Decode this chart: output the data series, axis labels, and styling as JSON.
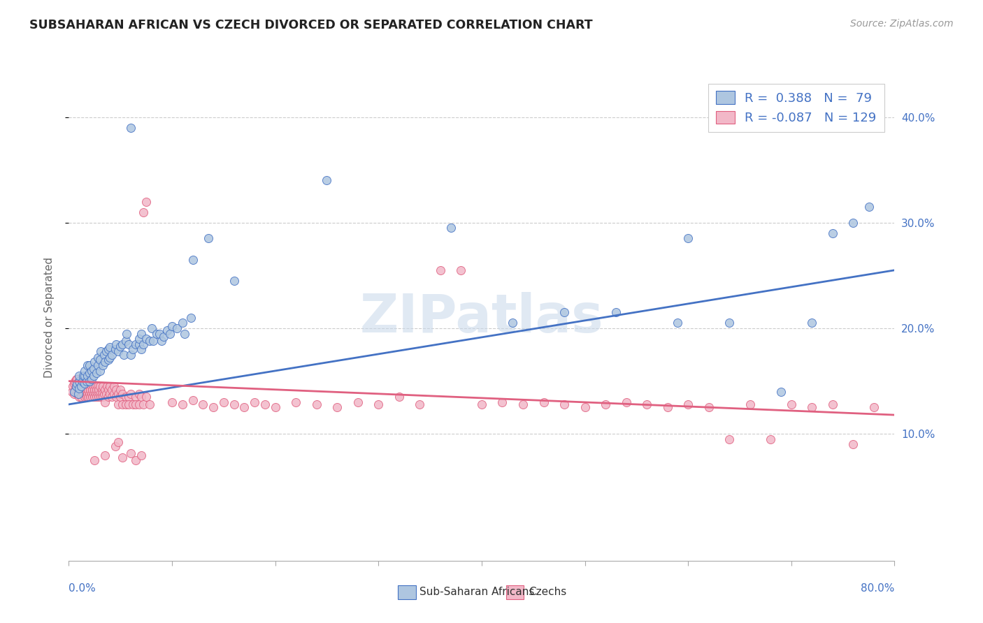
{
  "title": "SUBSAHARAN AFRICAN VS CZECH DIVORCED OR SEPARATED CORRELATION CHART",
  "source": "Source: ZipAtlas.com",
  "ylabel": "Divorced or Separated",
  "legend_blue_label": "Sub-Saharan Africans",
  "legend_pink_label": "Czechs",
  "legend_blue_r": "0.388",
  "legend_blue_n": "79",
  "legend_pink_r": "-0.087",
  "legend_pink_n": "129",
  "blue_color": "#aec6e0",
  "pink_color": "#f2b8c8",
  "blue_line_color": "#4472c4",
  "pink_line_color": "#e06080",
  "watermark": "ZIPatlas",
  "xlim": [
    0.0,
    0.8
  ],
  "ylim": [
    -0.02,
    0.44
  ],
  "yticks": [
    0.1,
    0.2,
    0.3,
    0.4
  ],
  "ytick_labels": [
    "10.0%",
    "20.0%",
    "30.0%",
    "40.0%"
  ],
  "blue_scatter": [
    [
      0.005,
      0.14
    ],
    [
      0.007,
      0.145
    ],
    [
      0.008,
      0.148
    ],
    [
      0.009,
      0.138
    ],
    [
      0.01,
      0.143
    ],
    [
      0.01,
      0.15
    ],
    [
      0.01,
      0.155
    ],
    [
      0.012,
      0.145
    ],
    [
      0.013,
      0.15
    ],
    [
      0.014,
      0.155
    ],
    [
      0.015,
      0.148
    ],
    [
      0.015,
      0.155
    ],
    [
      0.015,
      0.16
    ],
    [
      0.017,
      0.15
    ],
    [
      0.018,
      0.155
    ],
    [
      0.018,
      0.165
    ],
    [
      0.02,
      0.15
    ],
    [
      0.02,
      0.158
    ],
    [
      0.02,
      0.165
    ],
    [
      0.022,
      0.152
    ],
    [
      0.022,
      0.16
    ],
    [
      0.024,
      0.155
    ],
    [
      0.024,
      0.162
    ],
    [
      0.025,
      0.168
    ],
    [
      0.027,
      0.158
    ],
    [
      0.028,
      0.165
    ],
    [
      0.028,
      0.172
    ],
    [
      0.03,
      0.16
    ],
    [
      0.03,
      0.17
    ],
    [
      0.031,
      0.178
    ],
    [
      0.033,
      0.165
    ],
    [
      0.034,
      0.175
    ],
    [
      0.035,
      0.168
    ],
    [
      0.036,
      0.178
    ],
    [
      0.038,
      0.17
    ],
    [
      0.038,
      0.18
    ],
    [
      0.04,
      0.172
    ],
    [
      0.04,
      0.182
    ],
    [
      0.042,
      0.175
    ],
    [
      0.045,
      0.18
    ],
    [
      0.046,
      0.185
    ],
    [
      0.048,
      0.178
    ],
    [
      0.05,
      0.183
    ],
    [
      0.052,
      0.185
    ],
    [
      0.053,
      0.175
    ],
    [
      0.055,
      0.188
    ],
    [
      0.056,
      0.195
    ],
    [
      0.058,
      0.185
    ],
    [
      0.06,
      0.175
    ],
    [
      0.062,
      0.18
    ],
    [
      0.065,
      0.185
    ],
    [
      0.068,
      0.185
    ],
    [
      0.068,
      0.19
    ],
    [
      0.07,
      0.18
    ],
    [
      0.07,
      0.195
    ],
    [
      0.072,
      0.185
    ],
    [
      0.075,
      0.19
    ],
    [
      0.078,
      0.188
    ],
    [
      0.08,
      0.2
    ],
    [
      0.082,
      0.188
    ],
    [
      0.085,
      0.195
    ],
    [
      0.088,
      0.195
    ],
    [
      0.09,
      0.188
    ],
    [
      0.092,
      0.192
    ],
    [
      0.095,
      0.198
    ],
    [
      0.098,
      0.195
    ],
    [
      0.1,
      0.202
    ],
    [
      0.105,
      0.2
    ],
    [
      0.11,
      0.205
    ],
    [
      0.112,
      0.195
    ],
    [
      0.118,
      0.21
    ],
    [
      0.06,
      0.39
    ],
    [
      0.12,
      0.265
    ],
    [
      0.135,
      0.285
    ],
    [
      0.16,
      0.245
    ],
    [
      0.25,
      0.34
    ],
    [
      0.37,
      0.295
    ],
    [
      0.43,
      0.205
    ],
    [
      0.48,
      0.215
    ],
    [
      0.53,
      0.215
    ],
    [
      0.59,
      0.205
    ],
    [
      0.6,
      0.285
    ],
    [
      0.64,
      0.205
    ],
    [
      0.69,
      0.14
    ],
    [
      0.72,
      0.205
    ],
    [
      0.74,
      0.29
    ],
    [
      0.76,
      0.3
    ],
    [
      0.775,
      0.315
    ]
  ],
  "pink_scatter": [
    [
      0.003,
      0.14
    ],
    [
      0.004,
      0.145
    ],
    [
      0.005,
      0.138
    ],
    [
      0.005,
      0.148
    ],
    [
      0.006,
      0.142
    ],
    [
      0.006,
      0.15
    ],
    [
      0.007,
      0.145
    ],
    [
      0.007,
      0.152
    ],
    [
      0.008,
      0.138
    ],
    [
      0.008,
      0.145
    ],
    [
      0.008,
      0.152
    ],
    [
      0.009,
      0.14
    ],
    [
      0.009,
      0.148
    ],
    [
      0.01,
      0.135
    ],
    [
      0.01,
      0.142
    ],
    [
      0.01,
      0.15
    ],
    [
      0.011,
      0.138
    ],
    [
      0.011,
      0.145
    ],
    [
      0.012,
      0.135
    ],
    [
      0.012,
      0.142
    ],
    [
      0.013,
      0.14
    ],
    [
      0.013,
      0.148
    ],
    [
      0.014,
      0.138
    ],
    [
      0.014,
      0.145
    ],
    [
      0.015,
      0.135
    ],
    [
      0.015,
      0.142
    ],
    [
      0.015,
      0.15
    ],
    [
      0.016,
      0.138
    ],
    [
      0.016,
      0.145
    ],
    [
      0.017,
      0.135
    ],
    [
      0.017,
      0.142
    ],
    [
      0.018,
      0.138
    ],
    [
      0.018,
      0.145
    ],
    [
      0.019,
      0.135
    ],
    [
      0.019,
      0.142
    ],
    [
      0.02,
      0.138
    ],
    [
      0.02,
      0.145
    ],
    [
      0.021,
      0.135
    ],
    [
      0.021,
      0.142
    ],
    [
      0.022,
      0.138
    ],
    [
      0.022,
      0.145
    ],
    [
      0.023,
      0.135
    ],
    [
      0.023,
      0.142
    ],
    [
      0.024,
      0.138
    ],
    [
      0.024,
      0.145
    ],
    [
      0.025,
      0.135
    ],
    [
      0.025,
      0.142
    ],
    [
      0.026,
      0.138
    ],
    [
      0.026,
      0.145
    ],
    [
      0.027,
      0.135
    ],
    [
      0.027,
      0.142
    ],
    [
      0.028,
      0.138
    ],
    [
      0.028,
      0.145
    ],
    [
      0.029,
      0.135
    ],
    [
      0.029,
      0.142
    ],
    [
      0.03,
      0.138
    ],
    [
      0.03,
      0.145
    ],
    [
      0.031,
      0.135
    ],
    [
      0.032,
      0.142
    ],
    [
      0.032,
      0.138
    ],
    [
      0.033,
      0.135
    ],
    [
      0.033,
      0.145
    ],
    [
      0.034,
      0.138
    ],
    [
      0.035,
      0.142
    ],
    [
      0.035,
      0.13
    ],
    [
      0.036,
      0.138
    ],
    [
      0.037,
      0.145
    ],
    [
      0.038,
      0.135
    ],
    [
      0.038,
      0.142
    ],
    [
      0.04,
      0.138
    ],
    [
      0.04,
      0.145
    ],
    [
      0.042,
      0.135
    ],
    [
      0.042,
      0.142
    ],
    [
      0.044,
      0.138
    ],
    [
      0.044,
      0.145
    ],
    [
      0.046,
      0.135
    ],
    [
      0.046,
      0.142
    ],
    [
      0.048,
      0.138
    ],
    [
      0.048,
      0.128
    ],
    [
      0.05,
      0.135
    ],
    [
      0.05,
      0.142
    ],
    [
      0.052,
      0.138
    ],
    [
      0.052,
      0.128
    ],
    [
      0.055,
      0.135
    ],
    [
      0.055,
      0.128
    ],
    [
      0.058,
      0.135
    ],
    [
      0.058,
      0.128
    ],
    [
      0.06,
      0.138
    ],
    [
      0.062,
      0.128
    ],
    [
      0.065,
      0.135
    ],
    [
      0.065,
      0.128
    ],
    [
      0.068,
      0.138
    ],
    [
      0.068,
      0.128
    ],
    [
      0.07,
      0.135
    ],
    [
      0.072,
      0.128
    ],
    [
      0.075,
      0.135
    ],
    [
      0.078,
      0.128
    ],
    [
      0.025,
      0.075
    ],
    [
      0.035,
      0.08
    ],
    [
      0.045,
      0.088
    ],
    [
      0.048,
      0.092
    ],
    [
      0.052,
      0.078
    ],
    [
      0.06,
      0.082
    ],
    [
      0.065,
      0.075
    ],
    [
      0.07,
      0.08
    ],
    [
      0.072,
      0.31
    ],
    [
      0.075,
      0.32
    ],
    [
      0.1,
      0.13
    ],
    [
      0.11,
      0.128
    ],
    [
      0.12,
      0.132
    ],
    [
      0.13,
      0.128
    ],
    [
      0.14,
      0.125
    ],
    [
      0.15,
      0.13
    ],
    [
      0.16,
      0.128
    ],
    [
      0.17,
      0.125
    ],
    [
      0.18,
      0.13
    ],
    [
      0.19,
      0.128
    ],
    [
      0.2,
      0.125
    ],
    [
      0.22,
      0.13
    ],
    [
      0.24,
      0.128
    ],
    [
      0.26,
      0.125
    ],
    [
      0.28,
      0.13
    ],
    [
      0.3,
      0.128
    ],
    [
      0.32,
      0.135
    ],
    [
      0.34,
      0.128
    ],
    [
      0.36,
      0.255
    ],
    [
      0.38,
      0.255
    ],
    [
      0.4,
      0.128
    ],
    [
      0.42,
      0.13
    ],
    [
      0.44,
      0.128
    ],
    [
      0.46,
      0.13
    ],
    [
      0.48,
      0.128
    ],
    [
      0.5,
      0.125
    ],
    [
      0.52,
      0.128
    ],
    [
      0.54,
      0.13
    ],
    [
      0.56,
      0.128
    ],
    [
      0.58,
      0.125
    ],
    [
      0.6,
      0.128
    ],
    [
      0.62,
      0.125
    ],
    [
      0.64,
      0.095
    ],
    [
      0.66,
      0.128
    ],
    [
      0.68,
      0.095
    ],
    [
      0.7,
      0.128
    ],
    [
      0.72,
      0.125
    ],
    [
      0.74,
      0.128
    ],
    [
      0.76,
      0.09
    ],
    [
      0.78,
      0.125
    ]
  ],
  "blue_line_x": [
    0.0,
    0.8
  ],
  "blue_line_y": [
    0.128,
    0.255
  ],
  "pink_line_x": [
    0.0,
    0.8
  ],
  "pink_line_y": [
    0.15,
    0.118
  ]
}
